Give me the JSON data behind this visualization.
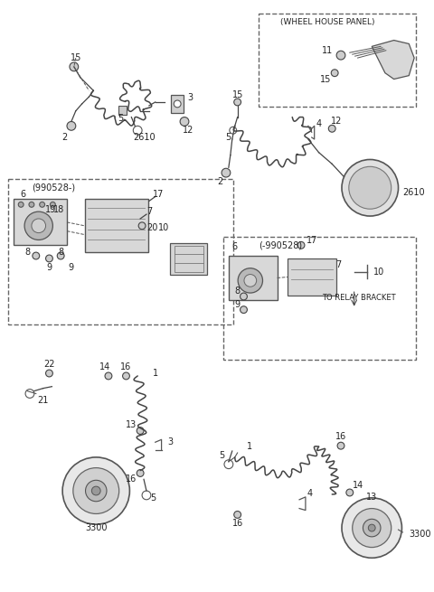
{
  "bg_color": "#ffffff",
  "lc": "#404040",
  "fig_width": 4.8,
  "fig_height": 6.55,
  "dpi": 100,
  "box1_label": "(990528-)",
  "box2_label": "(-990528)",
  "whp_label": "(WHEEL HOUSE PANEL)",
  "relay_label": "TO RELAY BRACKET",
  "n3300": "3300",
  "n2610": "2610"
}
